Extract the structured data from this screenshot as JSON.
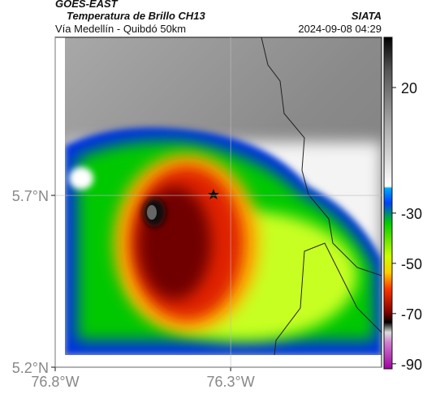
{
  "header": {
    "source": "GOES-EAST",
    "title": "Temperatura de Brillo CH13",
    "org": "SIATA",
    "subtitle": "Vía Medellín - Quibdó 50km",
    "timestamp": "2024-09-08 04:29"
  },
  "map": {
    "xlim": [
      -76.8,
      -75.87
    ],
    "ylim": [
      5.2,
      6.16
    ],
    "xticks": [
      {
        "value": -76.8,
        "label": "76.8°W"
      },
      {
        "value": -76.3,
        "label": "76.3°W"
      }
    ],
    "yticks": [
      {
        "value": 5.2,
        "label": "5.2°N"
      },
      {
        "value": 5.7,
        "label": "5.7°N"
      }
    ]
  },
  "colorbar": {
    "range": [
      -92,
      40
    ],
    "ticks": [
      20,
      -30,
      -50,
      -70,
      -90
    ]
  }
}
